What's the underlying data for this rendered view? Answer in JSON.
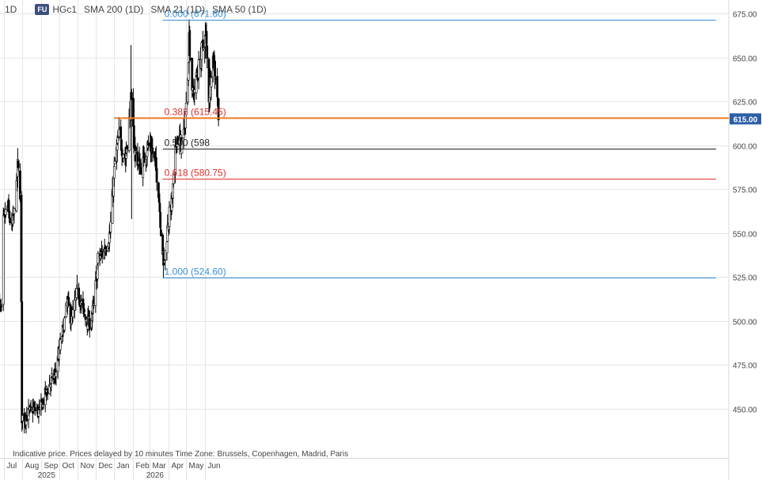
{
  "header": {
    "timeframe": "1D",
    "exchange_badge": "FU",
    "symbol": "HGc1",
    "indicators": [
      "SMA 200 (1D)",
      "SMA 21 (1D)",
      "SMA 50 (1D)"
    ]
  },
  "footer_note": "Indicative price. Prices delayed by 10 minutes   Time Zone: Brussels, Copenhagen, Madrid, Paris",
  "colors": {
    "candle": "#000000",
    "grid": "#e6e6e6",
    "fib_blue": "#3a8fd6",
    "fib_red": "#e0302a",
    "fib_black": "#222222",
    "resistance": "#f07a22",
    "price_tag_bg": "#2d5fa6"
  },
  "chart_data": {
    "type": "candlestick",
    "y_axis": {
      "range": [
        430,
        685
      ],
      "ticks": [
        "675.00",
        "650.00",
        "625.00",
        "600.00",
        "575.00",
        "550.00",
        "525.00",
        "500.00",
        "475.00",
        "450.00"
      ],
      "tick_values": [
        675,
        650,
        625,
        600,
        575,
        550,
        525,
        500,
        475,
        450
      ],
      "gridlines": true
    },
    "x_axis": {
      "months": [
        {
          "label": "Jul",
          "date": "2025-07-01"
        },
        {
          "label": "Aug",
          "date": "2025-08-01"
        },
        {
          "label": "Sep",
          "date": "2025-09-01"
        },
        {
          "label": "Oct",
          "date": "2025-10-01"
        },
        {
          "label": "Nov",
          "date": "2025-11-01"
        },
        {
          "label": "Dec",
          "date": "2025-12-01"
        },
        {
          "label": "Jan",
          "date": "2026-01-01"
        },
        {
          "label": "Feb",
          "date": "2026-02-01"
        },
        {
          "label": "Mar",
          "date": "2026-03-01"
        },
        {
          "label": "Apr",
          "date": "2026-04-01"
        },
        {
          "label": "May",
          "date": "2026-05-01"
        },
        {
          "label": "Jun",
          "date": "2026-06-01"
        }
      ],
      "years": [
        {
          "label": "2025",
          "date": "2025-09-10"
        },
        {
          "label": "2026",
          "date": "2026-03-10"
        }
      ]
    },
    "current_price": "615.00",
    "current_value": 615.0,
    "resistance_line": {
      "value": 615.45,
      "from": "2026-01-01"
    },
    "fibonacci": [
      {
        "ratio": "0.000",
        "label": "0.000 (671.60)",
        "value": 671.6,
        "color": "blue"
      },
      {
        "ratio": "0.382",
        "label": "0.382 (615.45)",
        "value": 615.45,
        "color": "red"
      },
      {
        "ratio": "0.500",
        "label": "0.500 (598",
        "value": 598.1,
        "color": "black"
      },
      {
        "ratio": "0.618",
        "label": "0.618 (580.75)",
        "value": 580.75,
        "color": "red"
      },
      {
        "ratio": "1.000",
        "label": "1.000 (524.60)",
        "value": 524.6,
        "color": "blue"
      }
    ],
    "fib_start": "2026-03-23",
    "price_path": [
      {
        "date": "2025-06-20",
        "close": 512
      },
      {
        "date": "2025-06-27",
        "close": 505
      },
      {
        "date": "2025-06-30",
        "close": 556
      },
      {
        "date": "2025-07-07",
        "close": 565
      },
      {
        "date": "2025-07-14",
        "close": 552
      },
      {
        "date": "2025-07-21",
        "close": 568
      },
      {
        "date": "2025-07-24",
        "close": 588
      },
      {
        "date": "2025-07-29",
        "close": 570
      },
      {
        "date": "2025-07-31",
        "close": 445
      },
      {
        "date": "2025-08-08",
        "close": 446
      },
      {
        "date": "2025-08-18",
        "close": 450
      },
      {
        "date": "2025-08-29",
        "close": 448
      },
      {
        "date": "2025-09-10",
        "close": 460
      },
      {
        "date": "2025-09-25",
        "close": 470
      },
      {
        "date": "2025-10-05",
        "close": 490
      },
      {
        "date": "2025-10-15",
        "close": 510
      },
      {
        "date": "2025-10-22",
        "close": 500
      },
      {
        "date": "2025-11-01",
        "close": 518
      },
      {
        "date": "2025-11-10",
        "close": 505
      },
      {
        "date": "2025-11-20",
        "close": 498
      },
      {
        "date": "2025-11-28",
        "close": 508
      },
      {
        "date": "2025-12-05",
        "close": 535
      },
      {
        "date": "2025-12-15",
        "close": 540
      },
      {
        "date": "2025-12-25",
        "close": 550
      },
      {
        "date": "2026-01-02",
        "close": 590
      },
      {
        "date": "2026-01-09",
        "close": 605
      },
      {
        "date": "2026-01-20",
        "close": 592
      },
      {
        "date": "2026-01-29",
        "close": 625
      },
      {
        "date": "2026-02-04",
        "close": 598
      },
      {
        "date": "2026-02-15",
        "close": 585
      },
      {
        "date": "2026-02-25",
        "close": 600
      },
      {
        "date": "2026-03-05",
        "close": 598
      },
      {
        "date": "2026-03-15",
        "close": 580
      },
      {
        "date": "2026-03-20",
        "close": 552
      },
      {
        "date": "2026-03-25",
        "close": 532
      },
      {
        "date": "2026-04-01",
        "close": 556
      },
      {
        "date": "2026-04-08",
        "close": 570
      },
      {
        "date": "2026-04-15",
        "close": 605
      },
      {
        "date": "2026-04-25",
        "close": 600
      },
      {
        "date": "2026-05-02",
        "close": 625
      },
      {
        "date": "2026-05-06",
        "close": 662
      },
      {
        "date": "2026-05-12",
        "close": 628
      },
      {
        "date": "2026-05-20",
        "close": 640
      },
      {
        "date": "2026-05-28",
        "close": 655
      },
      {
        "date": "2026-06-03",
        "close": 662
      },
      {
        "date": "2026-06-08",
        "close": 628
      },
      {
        "date": "2026-06-14",
        "close": 652
      },
      {
        "date": "2026-06-20",
        "close": 638
      },
      {
        "date": "2026-06-24",
        "close": 620
      }
    ]
  }
}
